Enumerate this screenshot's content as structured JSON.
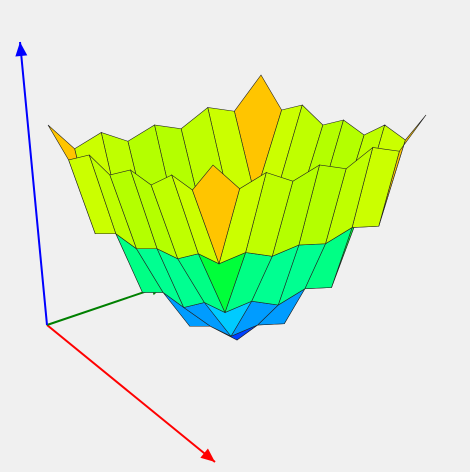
{
  "chart_data": {
    "type": "surface3d",
    "x": [
      -1,
      -0.75,
      -0.5,
      -0.25,
      0,
      0.25,
      0.5,
      0.75,
      1
    ],
    "y": [
      -1,
      -0.75,
      -0.5,
      -0.25,
      0,
      0.25,
      0.5,
      0.75,
      1
    ],
    "z": [
      [
        1.2,
        0.9,
        1.0,
        0.85,
        0.95,
        0.85,
        1.0,
        0.9,
        1.2
      ],
      [
        0.9,
        0.1,
        0.15,
        0.05,
        0.1,
        0.05,
        0.15,
        0.1,
        0.9
      ],
      [
        1.0,
        0.15,
        -0.5,
        -0.45,
        -0.55,
        -0.45,
        -0.5,
        0.15,
        1.0
      ],
      [
        0.85,
        0.05,
        -0.45,
        -0.85,
        -0.8,
        -0.85,
        -0.45,
        0.05,
        0.85
      ],
      [
        0.95,
        0.1,
        -0.55,
        -0.8,
        -1.0,
        -0.8,
        -0.55,
        0.1,
        0.95
      ],
      [
        0.85,
        0.05,
        -0.45,
        -0.85,
        -0.8,
        -0.85,
        -0.45,
        0.05,
        0.85
      ],
      [
        1.0,
        0.15,
        -0.5,
        -0.45,
        -0.55,
        -0.45,
        -0.5,
        0.15,
        1.0
      ],
      [
        0.9,
        0.1,
        0.15,
        0.05,
        0.1,
        0.05,
        0.15,
        0.1,
        0.9
      ],
      [
        1.2,
        0.9,
        1.0,
        0.85,
        0.95,
        0.85,
        1.0,
        0.9,
        1.2
      ]
    ],
    "colormap": [
      "#0000ff",
      "#00ffff",
      "#00ff00",
      "#ffff00",
      "#ff0000"
    ],
    "mesh_color": "#222222",
    "axis_colors": {
      "x": "#ff0000",
      "y": "#008000",
      "z": "#0000ff"
    }
  }
}
